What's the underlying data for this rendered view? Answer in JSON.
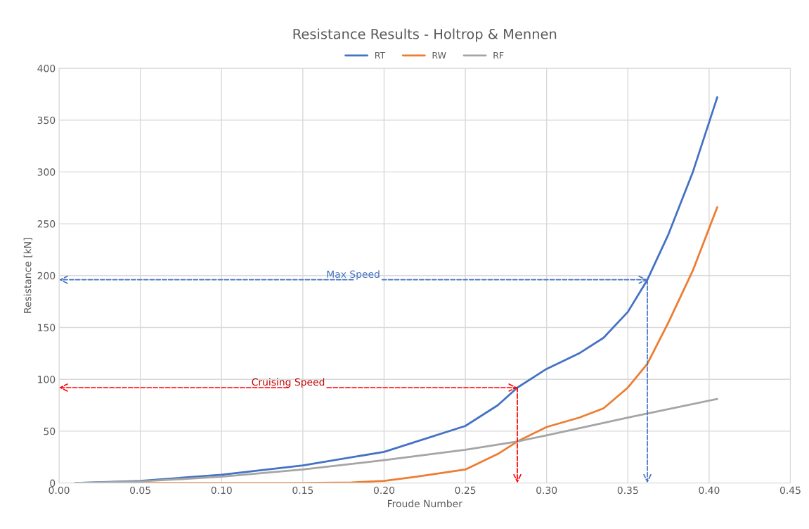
{
  "chart_data": {
    "type": "line",
    "title": "Resistance Results - Holtrop & Mennen",
    "xlabel": "Froude Number",
    "ylabel": "Resistance [kN]",
    "xlim": [
      0,
      0.45
    ],
    "xticks": [
      {
        "value": 0,
        "label": "0.00"
      },
      0.05,
      {
        "value": 0.1,
        "label": "0.10"
      },
      0.15,
      {
        "value": 0.2,
        "label": "0.20"
      },
      0.25,
      {
        "value": 0.3,
        "label": "0.30"
      },
      0.35,
      {
        "value": 0.4,
        "label": "0.40"
      },
      0.45
    ],
    "ylim": [
      0,
      400
    ],
    "yticks": [
      0,
      50,
      100,
      150,
      200,
      250,
      300,
      350,
      400
    ],
    "grid": true,
    "legend": "top",
    "marker": "none",
    "line_style": "solid",
    "series": [
      {
        "name": "RT",
        "color": "#4472c4",
        "x": [
          0.01,
          0.05,
          0.1,
          0.15,
          0.2,
          0.22,
          0.25,
          0.27,
          0.282,
          0.3,
          0.32,
          0.335,
          0.35,
          0.362,
          0.375,
          0.39,
          0.405
        ],
        "values": [
          0,
          2,
          8,
          17,
          30,
          40,
          55,
          75,
          92,
          110,
          125,
          140,
          165,
          196,
          240,
          300,
          372
        ]
      },
      {
        "name": "RW",
        "color": "#ed7d31",
        "x": [
          0.01,
          0.15,
          0.18,
          0.2,
          0.22,
          0.25,
          0.27,
          0.282,
          0.3,
          0.32,
          0.335,
          0.35,
          0.362,
          0.375,
          0.39,
          0.405
        ],
        "values": [
          0,
          0,
          0.5,
          2,
          6,
          13,
          28,
          40,
          54,
          63,
          72,
          92,
          115,
          155,
          205,
          266
        ]
      },
      {
        "name": "RF",
        "color": "#a5a5a5",
        "x": [
          0.01,
          0.05,
          0.1,
          0.15,
          0.2,
          0.25,
          0.282,
          0.3,
          0.35,
          0.405
        ],
        "values": [
          0,
          1.5,
          6,
          13,
          22,
          32,
          40,
          46,
          63,
          81
        ]
      }
    ],
    "annotations": [
      {
        "text": "Max Speed",
        "x": 0.362,
        "y": 196
      },
      {
        "text": "Cruising Speed",
        "x": 0.282,
        "y": 92
      }
    ]
  }
}
